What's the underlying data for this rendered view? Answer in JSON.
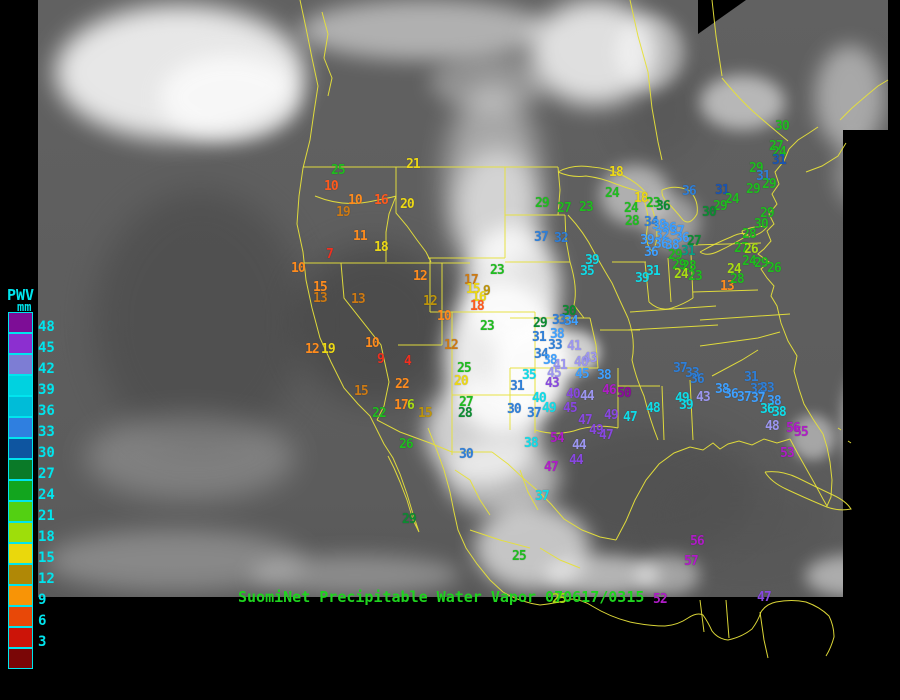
{
  "header": {
    "title": "SuomiNet Precipitable Water Vapor 070617/0315",
    "color": "#1fd31f"
  },
  "legend": {
    "title": "PWV",
    "unit": "mm",
    "text_color": "#00e5ee",
    "scale": [
      {
        "label": "48",
        "color": "#7d0d96"
      },
      {
        "label": "45",
        "color": "#8c2fd0"
      },
      {
        "label": "42",
        "color": "#7d7dd4"
      },
      {
        "label": "39",
        "color": "#00d2e0"
      },
      {
        "label": "36",
        "color": "#00bcd8"
      },
      {
        "label": "33",
        "color": "#2f7fe0"
      },
      {
        "label": "30",
        "color": "#0e55a0"
      },
      {
        "label": "27",
        "color": "#0a7a28"
      },
      {
        "label": "24",
        "color": "#12a51e"
      },
      {
        "label": "21",
        "color": "#53d012"
      },
      {
        "label": "18",
        "color": "#9ede0a"
      },
      {
        "label": "15",
        "color": "#ead80c"
      },
      {
        "label": "12",
        "color": "#b08806"
      },
      {
        "label": "9",
        "color": "#f89406"
      },
      {
        "label": "6",
        "color": "#e84808"
      },
      {
        "label": "3",
        "color": "#cc1408"
      }
    ],
    "below_scale_color": "#7a0606"
  },
  "map": {
    "border_line_color": "#e6e03a",
    "palette": {
      "red": "#f03020",
      "orangered": "#ff5a1e",
      "orange": "#ff8c1e",
      "dkorange": "#cd7a14",
      "goldenrod": "#bd940a",
      "yellow": "#ecd816",
      "yellowgreen": "#a8dc14",
      "green": "#1fbd1f",
      "dkgreen": "#0c8c32",
      "teal": "#0a9c86",
      "blue": "#2f7fd8",
      "dkblue": "#1a55b4",
      "azure": "#3fa0ff",
      "cyan": "#10dce8",
      "lavender": "#9c96f0",
      "purple": "#8848e0",
      "magenta": "#b01cc8",
      "dkmagenta": "#8c0a9c"
    },
    "stations": [
      [
        "25",
        331,
        165,
        "green"
      ],
      [
        "10",
        324,
        181,
        "orangered"
      ],
      [
        "10",
        348,
        195,
        "orange"
      ],
      [
        "16",
        374,
        195,
        "orangered"
      ],
      [
        "20",
        400,
        199,
        "yellow"
      ],
      [
        "21",
        406,
        159,
        "yellow"
      ],
      [
        "19",
        336,
        207,
        "dkorange"
      ],
      [
        "11",
        353,
        231,
        "orange"
      ],
      [
        "18",
        374,
        242,
        "yellow"
      ],
      [
        "7",
        326,
        249,
        "red"
      ],
      [
        "10",
        291,
        263,
        "orange"
      ],
      [
        "15",
        313,
        282,
        "orange"
      ],
      [
        "13",
        313,
        293,
        "dkorange"
      ],
      [
        "13",
        351,
        294,
        "dkorange"
      ],
      [
        "12",
        413,
        271,
        "orange"
      ],
      [
        "12",
        423,
        296,
        "goldenrod"
      ],
      [
        "17",
        464,
        275,
        "dkorange"
      ],
      [
        "15",
        466,
        284,
        "yellow"
      ],
      [
        "9",
        483,
        286,
        "goldenrod"
      ],
      [
        "16",
        472,
        292,
        "yellow"
      ],
      [
        "18",
        470,
        301,
        "orangered"
      ],
      [
        "23",
        490,
        265,
        "green"
      ],
      [
        "10",
        437,
        311,
        "orange"
      ],
      [
        "23",
        480,
        321,
        "green"
      ],
      [
        "12",
        444,
        340,
        "dkorange"
      ],
      [
        "4",
        404,
        356,
        "red"
      ],
      [
        "25",
        457,
        363,
        "green"
      ],
      [
        "20",
        454,
        376,
        "yellow"
      ],
      [
        "27",
        459,
        397,
        "green"
      ],
      [
        "28",
        458,
        408,
        "dkgreen"
      ],
      [
        "12",
        305,
        344,
        "orange"
      ],
      [
        "19",
        321,
        344,
        "yellow"
      ],
      [
        "10",
        365,
        338,
        "orange"
      ],
      [
        "9",
        377,
        354,
        "red"
      ],
      [
        "15",
        354,
        386,
        "dkorange"
      ],
      [
        "22",
        395,
        379,
        "orange"
      ],
      [
        "22",
        372,
        408,
        "green"
      ],
      [
        "17",
        394,
        400,
        "orange"
      ],
      [
        "6",
        407,
        400,
        "yellowgreen"
      ],
      [
        "15",
        418,
        408,
        "goldenrod"
      ],
      [
        "26",
        399,
        439,
        "green"
      ],
      [
        "29",
        402,
        514,
        "dkgreen"
      ],
      [
        "25",
        512,
        551,
        "green"
      ],
      [
        "37",
        535,
        491,
        "cyan"
      ],
      [
        "30",
        459,
        449,
        "blue"
      ],
      [
        "29",
        533,
        318,
        "dkgreen"
      ],
      [
        "30",
        562,
        306,
        "dkgreen"
      ],
      [
        "33",
        552,
        315,
        "blue"
      ],
      [
        "34",
        564,
        316,
        "azure"
      ],
      [
        "31",
        532,
        332,
        "blue"
      ],
      [
        "38",
        550,
        329,
        "azure"
      ],
      [
        "33",
        548,
        340,
        "blue"
      ],
      [
        "41",
        567,
        341,
        "lavender"
      ],
      [
        "34",
        534,
        349,
        "blue"
      ],
      [
        "38",
        543,
        355,
        "azure"
      ],
      [
        "41",
        553,
        360,
        "lavender"
      ],
      [
        "43",
        583,
        353,
        "lavender"
      ],
      [
        "40",
        574,
        357,
        "lavender"
      ],
      [
        "45",
        547,
        368,
        "lavender"
      ],
      [
        "35",
        522,
        370,
        "cyan"
      ],
      [
        "43",
        545,
        378,
        "purple"
      ],
      [
        "45",
        575,
        369,
        "azure"
      ],
      [
        "38",
        597,
        370,
        "azure"
      ],
      [
        "46",
        602,
        385,
        "magenta"
      ],
      [
        "50",
        617,
        388,
        "dkmagenta"
      ],
      [
        "40",
        532,
        393,
        "cyan"
      ],
      [
        "40",
        566,
        389,
        "purple"
      ],
      [
        "44",
        580,
        391,
        "lavender"
      ],
      [
        "49",
        542,
        403,
        "cyan"
      ],
      [
        "45",
        563,
        403,
        "purple"
      ],
      [
        "37",
        527,
        408,
        "blue"
      ],
      [
        "47",
        578,
        415,
        "purple"
      ],
      [
        "49",
        604,
        410,
        "purple"
      ],
      [
        "47",
        623,
        412,
        "cyan"
      ],
      [
        "31",
        510,
        381,
        "blue"
      ],
      [
        "30",
        507,
        404,
        "blue"
      ],
      [
        "49",
        589,
        425,
        "purple"
      ],
      [
        "47",
        599,
        430,
        "purple"
      ],
      [
        "54",
        550,
        433,
        "magenta"
      ],
      [
        "44",
        572,
        440,
        "lavender"
      ],
      [
        "44",
        569,
        455,
        "purple"
      ],
      [
        "47",
        544,
        462,
        "magenta"
      ],
      [
        "38",
        524,
        438,
        "cyan"
      ],
      [
        "18",
        609,
        167,
        "yellow"
      ],
      [
        "29",
        535,
        198,
        "green"
      ],
      [
        "27",
        557,
        203,
        "green"
      ],
      [
        "23",
        579,
        202,
        "green"
      ],
      [
        "24",
        605,
        188,
        "green"
      ],
      [
        "18",
        634,
        193,
        "yellow"
      ],
      [
        "23",
        646,
        198,
        "green"
      ],
      [
        "24",
        624,
        203,
        "green"
      ],
      [
        "28",
        625,
        216,
        "green"
      ],
      [
        "36",
        656,
        201,
        "dkgreen"
      ],
      [
        "37",
        534,
        232,
        "blue"
      ],
      [
        "32",
        554,
        233,
        "blue"
      ],
      [
        "39",
        585,
        255,
        "cyan"
      ],
      [
        "35",
        580,
        266,
        "cyan"
      ],
      [
        "39",
        635,
        273,
        "cyan"
      ],
      [
        "31",
        646,
        266,
        "cyan"
      ],
      [
        "13",
        720,
        281,
        "orange"
      ],
      [
        "24",
        727,
        264,
        "yellowgreen"
      ],
      [
        "36",
        682,
        186,
        "blue"
      ],
      [
        "31",
        715,
        185,
        "dkblue"
      ],
      [
        "24",
        725,
        194,
        "green"
      ],
      [
        "29",
        713,
        201,
        "green"
      ],
      [
        "30",
        702,
        207,
        "dkgreen"
      ],
      [
        "34",
        644,
        217,
        "blue"
      ],
      [
        "38",
        652,
        220,
        "azure"
      ],
      [
        "36",
        662,
        223,
        "azure"
      ],
      [
        "37",
        670,
        226,
        "azure"
      ],
      [
        "32",
        655,
        230,
        "azure"
      ],
      [
        "36",
        675,
        233,
        "azure"
      ],
      [
        "39",
        640,
        235,
        "azure"
      ],
      [
        "36",
        654,
        239,
        "azure"
      ],
      [
        "38",
        665,
        240,
        "azure"
      ],
      [
        "36",
        644,
        247,
        "azure"
      ],
      [
        "31",
        681,
        246,
        "teal"
      ],
      [
        "27",
        687,
        236,
        "dkgreen"
      ],
      [
        "29",
        668,
        250,
        "green"
      ],
      [
        "29",
        672,
        260,
        "green"
      ],
      [
        "28",
        682,
        261,
        "green"
      ],
      [
        "24",
        674,
        269,
        "yellowgreen"
      ],
      [
        "23",
        688,
        271,
        "green"
      ],
      [
        "30",
        775,
        121,
        "green"
      ],
      [
        "27",
        769,
        141,
        "green"
      ],
      [
        "24",
        772,
        147,
        "green"
      ],
      [
        "31",
        772,
        155,
        "dkblue"
      ],
      [
        "29",
        749,
        163,
        "green"
      ],
      [
        "31",
        756,
        171,
        "blue"
      ],
      [
        "29",
        746,
        184,
        "green"
      ],
      [
        "29",
        762,
        179,
        "green"
      ],
      [
        "30",
        754,
        219,
        "green"
      ],
      [
        "29",
        760,
        208,
        "green"
      ],
      [
        "28",
        742,
        229,
        "green"
      ],
      [
        "27",
        734,
        243,
        "green"
      ],
      [
        "26",
        744,
        244,
        "yellowgreen"
      ],
      [
        "24",
        742,
        256,
        "green"
      ],
      [
        "29",
        754,
        258,
        "green"
      ],
      [
        "26",
        767,
        263,
        "green"
      ],
      [
        "28",
        730,
        274,
        "green"
      ],
      [
        "37",
        673,
        363,
        "blue"
      ],
      [
        "33",
        685,
        368,
        "blue"
      ],
      [
        "36",
        690,
        374,
        "blue"
      ],
      [
        "31",
        744,
        372,
        "blue"
      ],
      [
        "32",
        750,
        384,
        "blue"
      ],
      [
        "33",
        760,
        383,
        "blue"
      ],
      [
        "38",
        715,
        384,
        "azure"
      ],
      [
        "36",
        724,
        389,
        "azure"
      ],
      [
        "37",
        737,
        392,
        "azure"
      ],
      [
        "37",
        751,
        393,
        "azure"
      ],
      [
        "38",
        767,
        396,
        "azure"
      ],
      [
        "36",
        760,
        404,
        "cyan"
      ],
      [
        "38",
        772,
        407,
        "cyan"
      ],
      [
        "48",
        765,
        421,
        "lavender"
      ],
      [
        "56",
        786,
        423,
        "magenta"
      ],
      [
        "55",
        794,
        427,
        "magenta"
      ],
      [
        "53",
        780,
        448,
        "magenta"
      ],
      [
        "48",
        646,
        403,
        "cyan"
      ],
      [
        "49",
        675,
        393,
        "cyan"
      ],
      [
        "39",
        679,
        400,
        "cyan"
      ],
      [
        "43",
        696,
        392,
        "lavender"
      ],
      [
        "56",
        690,
        536,
        "magenta"
      ],
      [
        "57",
        684,
        556,
        "magenta"
      ],
      [
        "52",
        653,
        594,
        "magenta"
      ],
      [
        "47",
        757,
        592,
        "purple"
      ],
      [
        "25",
        552,
        594,
        "yellowgreen"
      ]
    ]
  }
}
